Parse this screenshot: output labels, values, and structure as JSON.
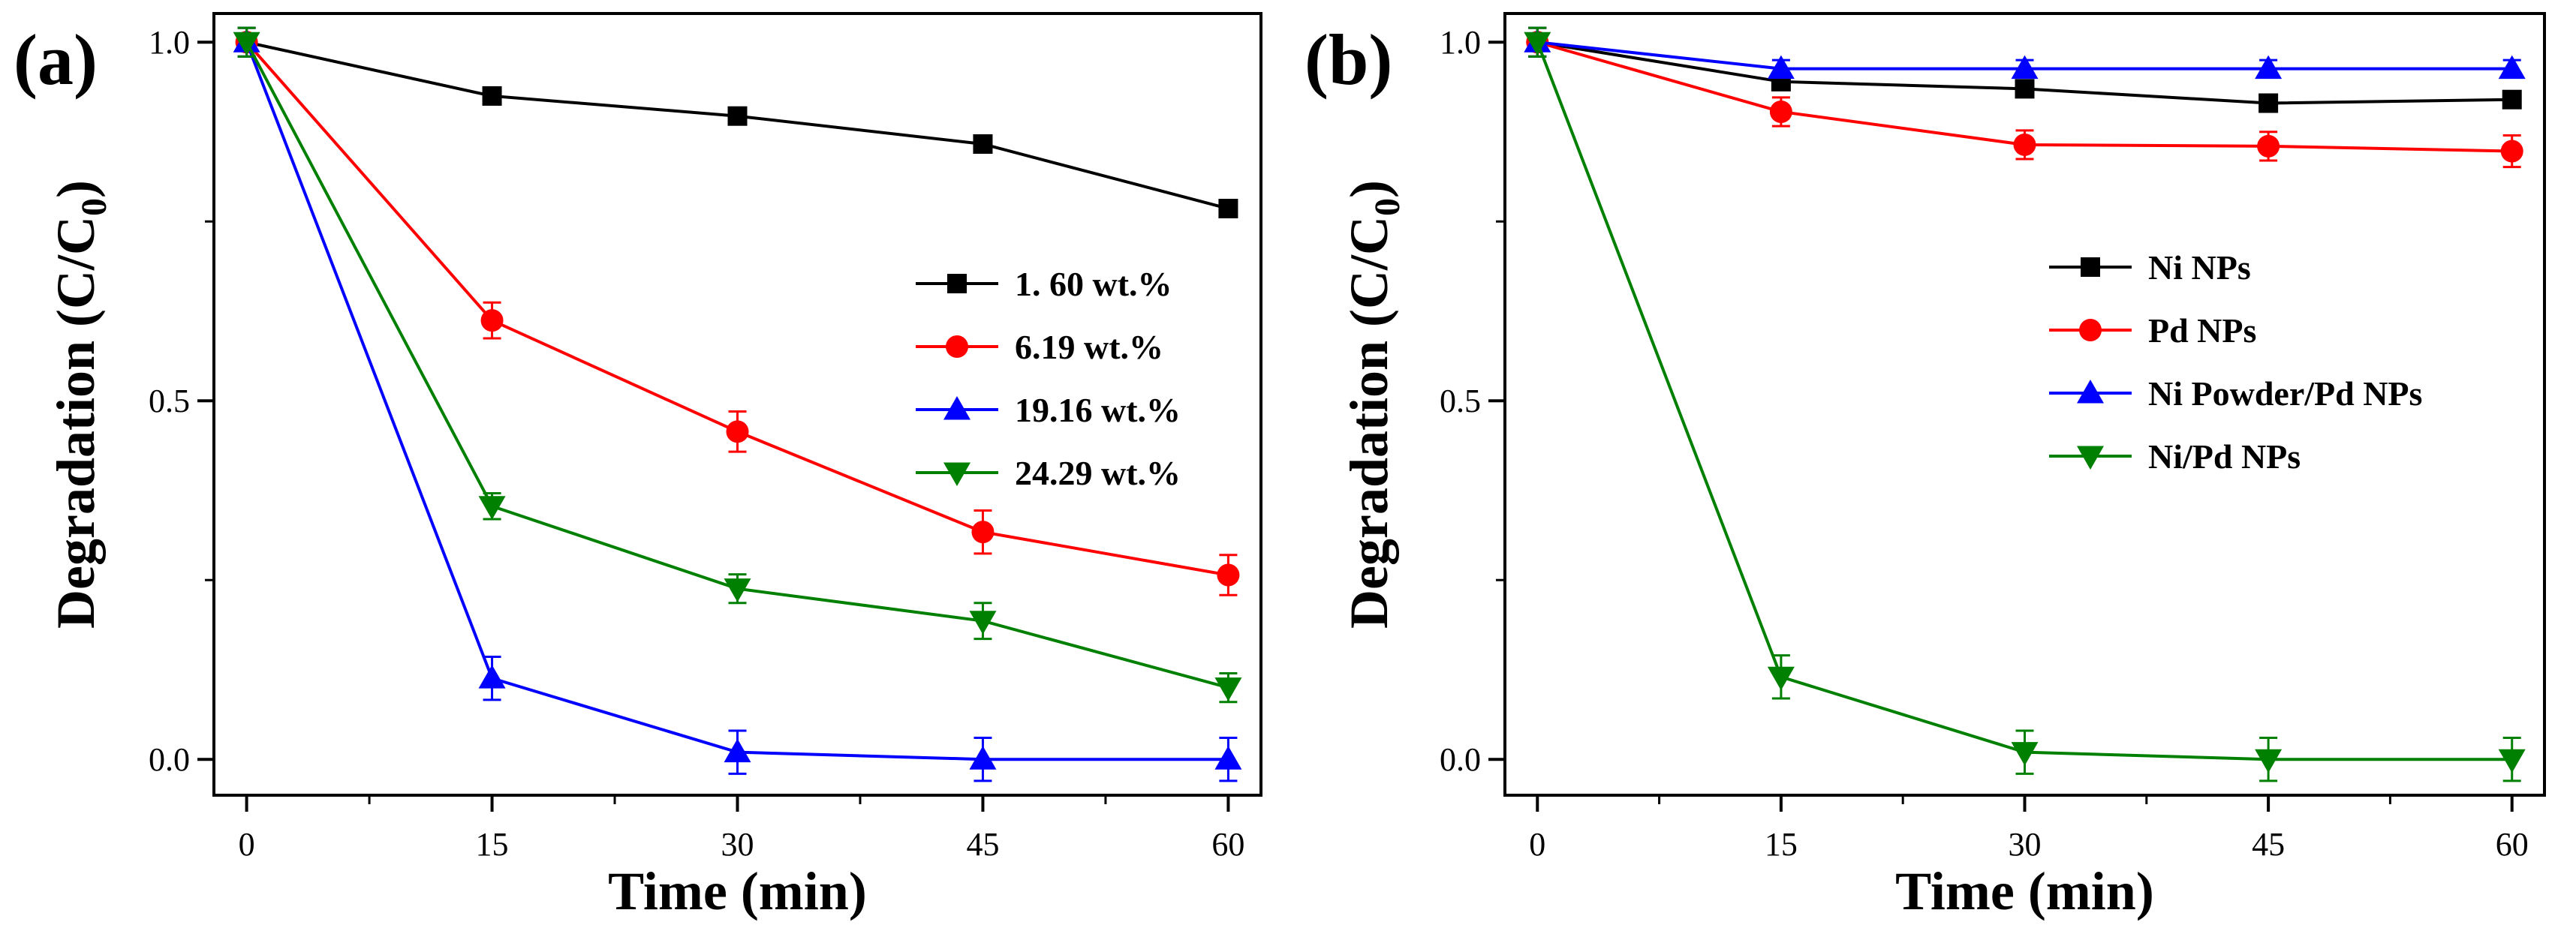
{
  "chart_data": [
    {
      "type": "line",
      "panel_label": "(a)",
      "title": "",
      "xlabel": "Time (min)",
      "ylabel": "Degradation (C/C",
      "ylabel_sub": "0",
      "ylabel_close": ")",
      "x": [
        0,
        15,
        30,
        45,
        60
      ],
      "x_ticks": [
        "0",
        "15",
        "30",
        "45",
        "60"
      ],
      "y_ticks": [
        "0.0",
        "0.5",
        "1.0"
      ],
      "xlim": [
        -2,
        62
      ],
      "ylim": [
        -0.05,
        1.04
      ],
      "grid": false,
      "legend_position": "right",
      "series": [
        {
          "name": "1. 60 wt.%",
          "color": "#000000",
          "marker": "square",
          "values": [
            1.0,
            0.925,
            0.897,
            0.858,
            0.768
          ],
          "errors": [
            0.02,
            0.008,
            0.008,
            0.008,
            0.012
          ]
        },
        {
          "name": "6.19 wt.%",
          "color": "#ff0000",
          "marker": "circle",
          "values": [
            1.0,
            0.612,
            0.457,
            0.317,
            0.257
          ],
          "errors": [
            0.02,
            0.025,
            0.028,
            0.03,
            0.028
          ]
        },
        {
          "name": "19.16 wt.%",
          "color": "#0000ff",
          "marker": "triangle-up",
          "values": [
            1.0,
            0.113,
            0.01,
            0.0,
            0.0
          ],
          "errors": [
            0.02,
            0.03,
            0.03,
            0.03,
            0.03
          ]
        },
        {
          "name": "24.29 wt.%",
          "color": "#008000",
          "marker": "triangle-down",
          "values": [
            1.0,
            0.353,
            0.238,
            0.193,
            0.1
          ],
          "errors": [
            0.02,
            0.018,
            0.02,
            0.025,
            0.02
          ]
        }
      ]
    },
    {
      "type": "line",
      "panel_label": "(b)",
      "title": "",
      "xlabel": "Time (min)",
      "ylabel": "Degradation (C/C",
      "ylabel_sub": "0",
      "ylabel_close": ")",
      "x": [
        0,
        15,
        30,
        45,
        60
      ],
      "x_ticks": [
        "0",
        "15",
        "30",
        "45",
        "60"
      ],
      "y_ticks": [
        "0.0",
        "0.5",
        "1.0"
      ],
      "xlim": [
        -2,
        62
      ],
      "ylim": [
        -0.05,
        1.04
      ],
      "grid": false,
      "legend_position": "right",
      "series": [
        {
          "name": "Ni NPs",
          "color": "#000000",
          "marker": "square",
          "values": [
            1.0,
            0.945,
            0.935,
            0.915,
            0.92
          ],
          "errors": [
            0.02,
            0.01,
            0.01,
            0.01,
            0.01
          ]
        },
        {
          "name": "Pd NPs",
          "color": "#ff0000",
          "marker": "circle",
          "values": [
            1.0,
            0.903,
            0.857,
            0.855,
            0.848
          ],
          "errors": [
            0.02,
            0.02,
            0.02,
            0.02,
            0.022
          ]
        },
        {
          "name": "Ni Powder/Pd NPs",
          "color": "#0000ff",
          "marker": "triangle-up",
          "values": [
            1.0,
            0.963,
            0.963,
            0.963,
            0.963
          ],
          "errors": [
            0.02,
            0.012,
            0.012,
            0.012,
            0.012
          ]
        },
        {
          "name": "Ni/Pd NPs",
          "color": "#008000",
          "marker": "triangle-down",
          "values": [
            1.0,
            0.115,
            0.01,
            0.0,
            0.0
          ],
          "errors": [
            0.02,
            0.03,
            0.03,
            0.03,
            0.03
          ]
        }
      ]
    }
  ]
}
